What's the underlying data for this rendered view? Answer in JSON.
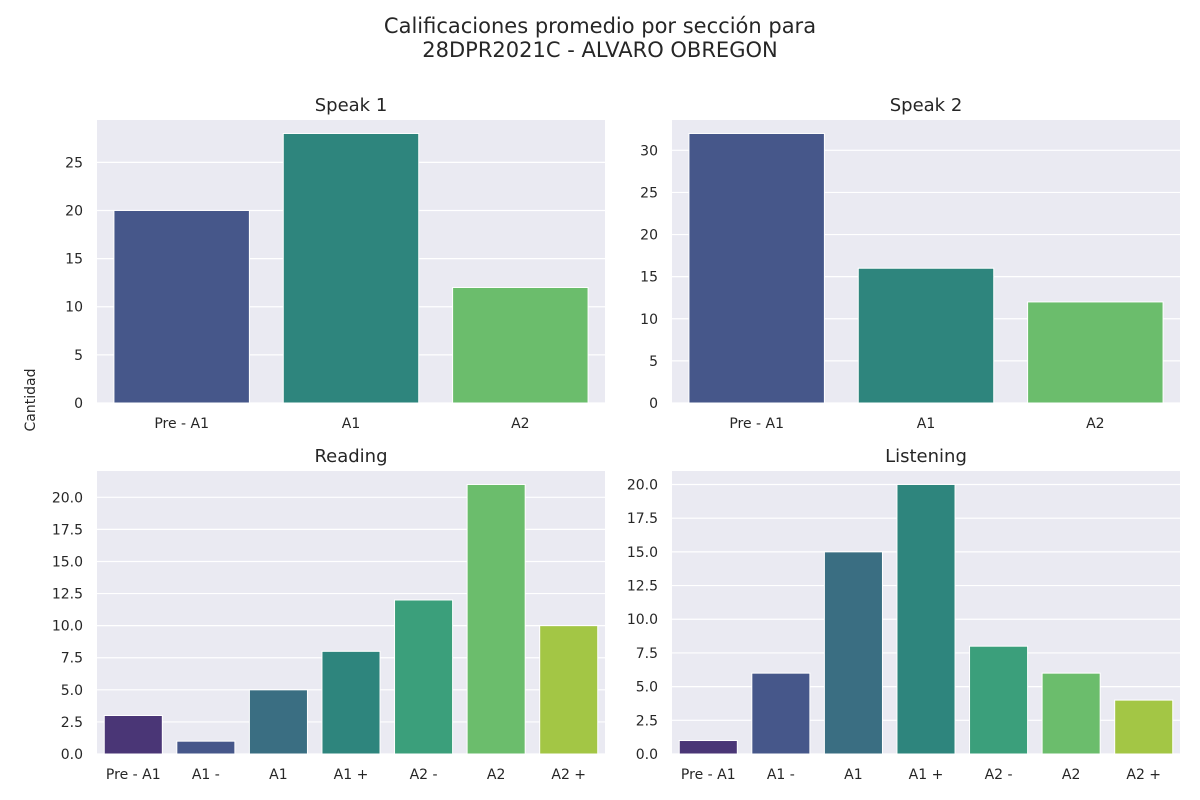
{
  "figure": {
    "title_line1": "Calificaciones promedio por sección para",
    "title_line2": "28DPR2021C - ALVARO OBREGON",
    "shared_ylabel": "Cantidad"
  },
  "colors": {
    "plot_background": "#eaeaf2",
    "grid": "#ffffff",
    "palette_3": [
      "#46578a",
      "#2e857d",
      "#6bbd6c"
    ],
    "palette_7": [
      "#4a3676",
      "#46578a",
      "#3a6e82",
      "#2e857d",
      "#3b9f7b",
      "#6bbd6c",
      "#a3c645"
    ]
  },
  "chart_data": [
    {
      "type": "bar",
      "title": "Speak 1",
      "categories": [
        "Pre - A1",
        "A1",
        "A2"
      ],
      "values": [
        20,
        28,
        12
      ],
      "ylim": [
        0,
        29.4
      ],
      "yticks": [
        0,
        5,
        10,
        15,
        20,
        25
      ],
      "ytick_labels": [
        "0",
        "5",
        "10",
        "15",
        "20",
        "25"
      ],
      "grid": true
    },
    {
      "type": "bar",
      "title": "Speak 2",
      "categories": [
        "Pre - A1",
        "A1",
        "A2"
      ],
      "values": [
        32,
        16,
        12
      ],
      "ylim": [
        0,
        33.6
      ],
      "yticks": [
        0,
        5,
        10,
        15,
        20,
        25,
        30
      ],
      "ytick_labels": [
        "0",
        "5",
        "10",
        "15",
        "20",
        "25",
        "30"
      ],
      "grid": true
    },
    {
      "type": "bar",
      "title": "Reading",
      "categories": [
        "Pre - A1",
        "A1 -",
        "A1",
        "A1 +",
        "A2 -",
        "A2",
        "A2 +"
      ],
      "values": [
        3,
        1,
        5,
        8,
        12,
        21,
        10
      ],
      "ylim": [
        0,
        22.05
      ],
      "yticks": [
        0,
        2.5,
        5,
        7.5,
        10,
        12.5,
        15,
        17.5,
        20
      ],
      "ytick_labels": [
        "0.0",
        "2.5",
        "5.0",
        "7.5",
        "10.0",
        "12.5",
        "15.0",
        "17.5",
        "20.0"
      ],
      "grid": true
    },
    {
      "type": "bar",
      "title": "Listening",
      "categories": [
        "Pre - A1",
        "A1 -",
        "A1",
        "A1 +",
        "A2 -",
        "A2",
        "A2 +"
      ],
      "values": [
        1,
        6,
        15,
        20,
        8,
        6,
        4
      ],
      "ylim": [
        0,
        21
      ],
      "yticks": [
        0,
        2.5,
        5,
        7.5,
        10,
        12.5,
        15,
        17.5,
        20
      ],
      "ytick_labels": [
        "0.0",
        "2.5",
        "5.0",
        "7.5",
        "10.0",
        "12.5",
        "15.0",
        "17.5",
        "20.0"
      ],
      "grid": true
    }
  ]
}
